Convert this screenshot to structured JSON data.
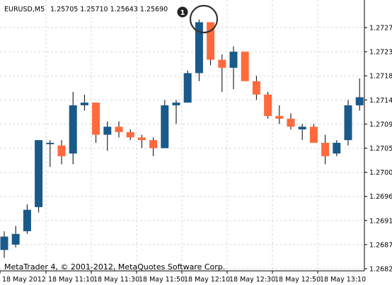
{
  "header": {
    "symbol": "EURUSD,M5",
    "ohlc": "1.25705 1.25710 1.25643 1.25690"
  },
  "copyright": "MetaTrader 4, © 2001-2012, MetaQuotes Software Corp.",
  "marker": {
    "label": "1"
  },
  "colors": {
    "background": "#ffffff",
    "grid": "#d9d9d9",
    "axis": "#000000",
    "bull": "#1a5a8a",
    "bear": "#ff6a3d",
    "wick": "#000000",
    "highlight": "#333333"
  },
  "chart_data": {
    "type": "candlestick",
    "y_ticks": [
      "1.27275",
      "1.27230",
      "1.27185",
      "1.27140",
      "1.27095",
      "1.27050",
      "1.27005",
      "1.26960",
      "1.26915",
      "1.26870",
      "1.26825"
    ],
    "x_labels": [
      "18 May 2012",
      "18 May 11:10",
      "18 May 11:30",
      "18 May 11:50",
      "18 May 12:10",
      "18 May 12:30",
      "18 May 12:50",
      "18 May 13:10"
    ],
    "ylim": [
      1.26825,
      1.27275
    ],
    "grid": true,
    "highlighted_candle": 17,
    "candles": [
      {
        "o": 1.2686,
        "h": 1.26895,
        "l": 1.26845,
        "c": 1.26885
      },
      {
        "o": 1.2687,
        "h": 1.26905,
        "l": 1.26865,
        "c": 1.2689
      },
      {
        "o": 1.26895,
        "h": 1.26945,
        "l": 1.2689,
        "c": 1.26935
      },
      {
        "o": 1.2694,
        "h": 1.27065,
        "l": 1.2693,
        "c": 1.27065
      },
      {
        "o": 1.2706,
        "h": 1.27065,
        "l": 1.27015,
        "c": 1.2706
      },
      {
        "o": 1.27055,
        "h": 1.27065,
        "l": 1.2702,
        "c": 1.27035
      },
      {
        "o": 1.2704,
        "h": 1.27155,
        "l": 1.2702,
        "c": 1.2713
      },
      {
        "o": 1.2713,
        "h": 1.2715,
        "l": 1.2712,
        "c": 1.27135
      },
      {
        "o": 1.27135,
        "h": 1.27135,
        "l": 1.2706,
        "c": 1.27075
      },
      {
        "o": 1.27075,
        "h": 1.271,
        "l": 1.27045,
        "c": 1.2709
      },
      {
        "o": 1.2709,
        "h": 1.271,
        "l": 1.2707,
        "c": 1.2708
      },
      {
        "o": 1.2708,
        "h": 1.27085,
        "l": 1.27065,
        "c": 1.2707
      },
      {
        "o": 1.2707,
        "h": 1.27075,
        "l": 1.2705,
        "c": 1.27065
      },
      {
        "o": 1.27065,
        "h": 1.2707,
        "l": 1.27035,
        "c": 1.2705
      },
      {
        "o": 1.2705,
        "h": 1.2714,
        "l": 1.2705,
        "c": 1.2713
      },
      {
        "o": 1.2713,
        "h": 1.2714,
        "l": 1.27095,
        "c": 1.27135
      },
      {
        "o": 1.27135,
        "h": 1.27195,
        "l": 1.27135,
        "c": 1.2719
      },
      {
        "o": 1.2719,
        "h": 1.2729,
        "l": 1.27175,
        "c": 1.27285
      },
      {
        "o": 1.27285,
        "h": 1.27285,
        "l": 1.27205,
        "c": 1.27215
      },
      {
        "o": 1.27215,
        "h": 1.27225,
        "l": 1.27155,
        "c": 1.272
      },
      {
        "o": 1.272,
        "h": 1.2724,
        "l": 1.2716,
        "c": 1.2723
      },
      {
        "o": 1.2723,
        "h": 1.2723,
        "l": 1.27175,
        "c": 1.27175
      },
      {
        "o": 1.27175,
        "h": 1.27185,
        "l": 1.2714,
        "c": 1.2715
      },
      {
        "o": 1.2715,
        "h": 1.27155,
        "l": 1.27105,
        "c": 1.2711
      },
      {
        "o": 1.2711,
        "h": 1.2713,
        "l": 1.27095,
        "c": 1.27105
      },
      {
        "o": 1.27105,
        "h": 1.27115,
        "l": 1.27085,
        "c": 1.2709
      },
      {
        "o": 1.27085,
        "h": 1.27095,
        "l": 1.27065,
        "c": 1.2709
      },
      {
        "o": 1.2709,
        "h": 1.27095,
        "l": 1.2706,
        "c": 1.2706
      },
      {
        "o": 1.2706,
        "h": 1.27075,
        "l": 1.2702,
        "c": 1.27035
      },
      {
        "o": 1.2704,
        "h": 1.27065,
        "l": 1.27035,
        "c": 1.2706
      },
      {
        "o": 1.27065,
        "h": 1.2714,
        "l": 1.27055,
        "c": 1.2713
      },
      {
        "o": 1.2713,
        "h": 1.2718,
        "l": 1.2712,
        "c": 1.27145
      }
    ]
  }
}
